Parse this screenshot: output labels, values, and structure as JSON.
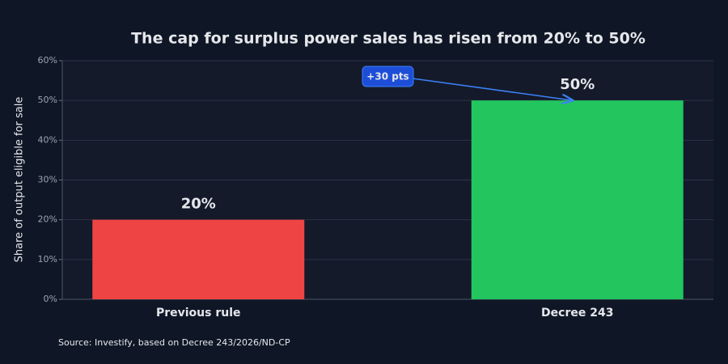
{
  "chart_data": {
    "type": "bar",
    "title": "The cap for surplus power sales has risen from 20% to 50%",
    "ylabel": "Share of output eligible for sale",
    "categories": [
      "Previous rule",
      "Decree 243"
    ],
    "values": [
      20,
      50
    ],
    "value_labels": [
      "20%",
      "50%"
    ],
    "colors": [
      "#ef4444",
      "#22c55e"
    ],
    "ylim": [
      0,
      60
    ],
    "yticks": [
      {
        "value": 0,
        "label": "0%"
      },
      {
        "value": 10,
        "label": "10%"
      },
      {
        "value": 20,
        "label": "20%"
      },
      {
        "value": 30,
        "label": "30%"
      },
      {
        "value": 40,
        "label": "40%"
      },
      {
        "value": 50,
        "label": "50%"
      },
      {
        "value": 60,
        "label": "60%"
      }
    ],
    "grid": true,
    "annotation": "+30 pts",
    "source": "Source: Investify, based on Decree 243/2026/ND-CP"
  }
}
